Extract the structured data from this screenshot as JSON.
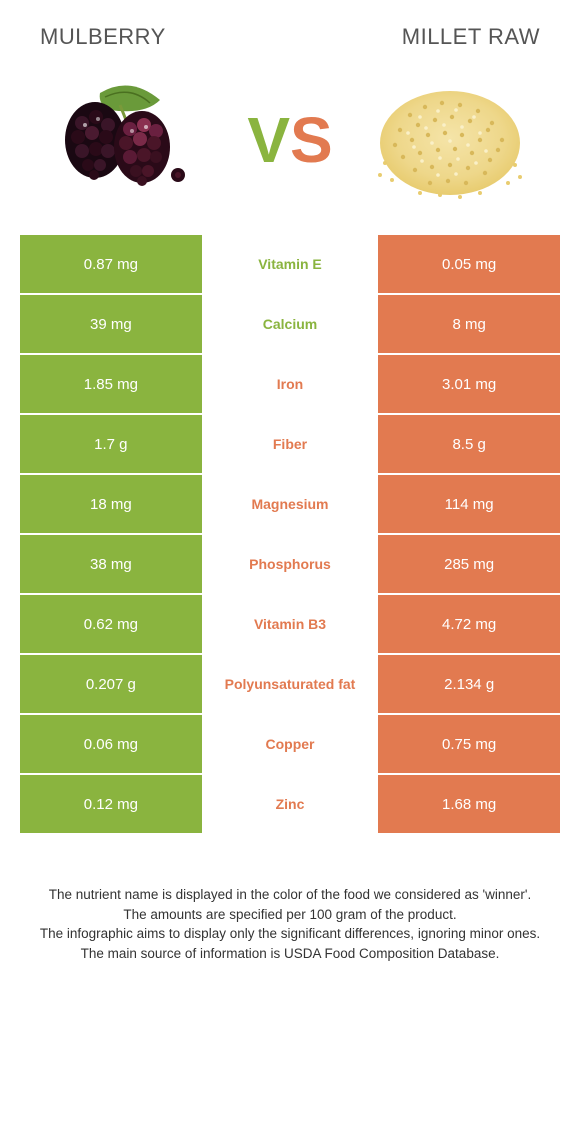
{
  "foods": {
    "left": {
      "name": "Mulberry",
      "color": "#8ab43f"
    },
    "right": {
      "name": "Millet raw",
      "color": "#e27a50"
    }
  },
  "vs": {
    "v_color": "#8ab43f",
    "s_color": "#e27a50"
  },
  "table": {
    "left_bg": "#8ab43f",
    "right_bg": "#e27a50",
    "rows": [
      {
        "left": "0.87 mg",
        "label": "Vitamin E",
        "right": "0.05 mg",
        "winner": "left"
      },
      {
        "left": "39 mg",
        "label": "Calcium",
        "right": "8 mg",
        "winner": "left"
      },
      {
        "left": "1.85 mg",
        "label": "Iron",
        "right": "3.01 mg",
        "winner": "right"
      },
      {
        "left": "1.7 g",
        "label": "Fiber",
        "right": "8.5 g",
        "winner": "right"
      },
      {
        "left": "18 mg",
        "label": "Magnesium",
        "right": "114 mg",
        "winner": "right"
      },
      {
        "left": "38 mg",
        "label": "Phosphorus",
        "right": "285 mg",
        "winner": "right"
      },
      {
        "left": "0.62 mg",
        "label": "Vitamin B3",
        "right": "4.72 mg",
        "winner": "right"
      },
      {
        "left": "0.207 g",
        "label": "Polyunsaturated fat",
        "right": "2.134 g",
        "winner": "right"
      },
      {
        "left": "0.06 mg",
        "label": "Copper",
        "right": "0.75 mg",
        "winner": "right"
      },
      {
        "left": "0.12 mg",
        "label": "Zinc",
        "right": "1.68 mg",
        "winner": "right"
      }
    ]
  },
  "footer": {
    "line1": "The nutrient name is displayed in the color of the food we considered as 'winner'.",
    "line2": "The amounts are specified per 100 gram of the product.",
    "line3": "The infographic aims to display only the significant differences, ignoring minor ones.",
    "line4": "The main source of information is USDA Food Composition Database."
  }
}
